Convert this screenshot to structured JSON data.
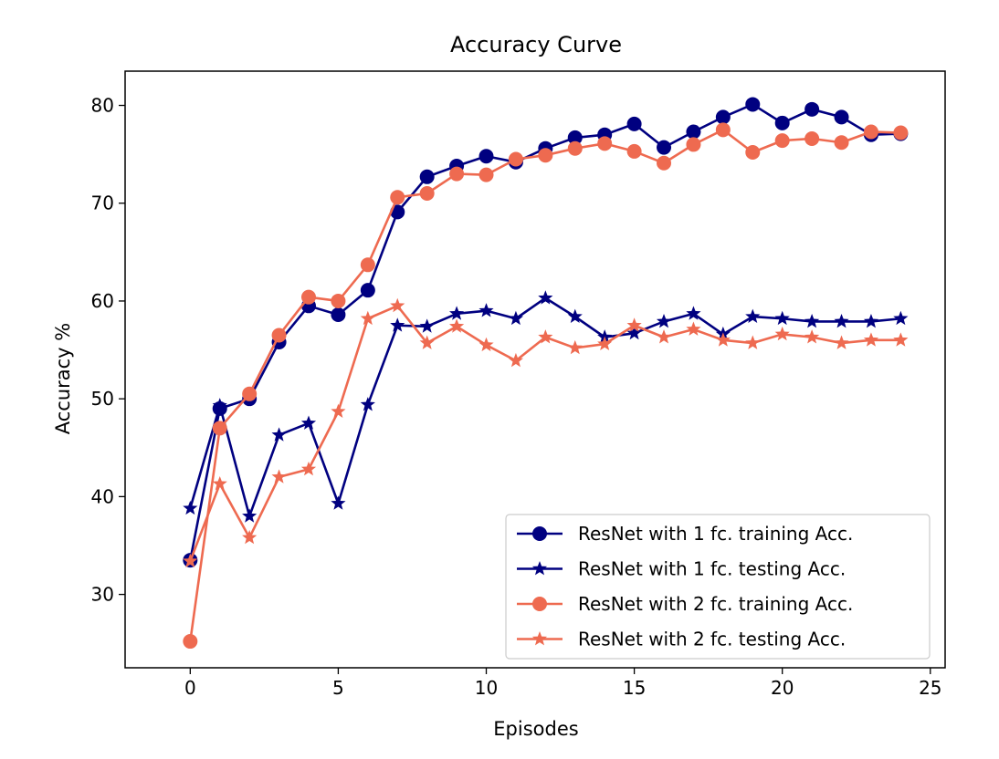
{
  "chart_data": {
    "type": "line",
    "title": "Accuracy Curve",
    "xlabel": "Episodes",
    "ylabel": "Accuracy %",
    "xlim": [
      -2.2,
      25.5
    ],
    "ylim": [
      22.5,
      83.5
    ],
    "xticks": [
      0,
      5,
      10,
      15,
      20,
      25
    ],
    "yticks": [
      30,
      40,
      50,
      60,
      70,
      80
    ],
    "grid": false,
    "legend_position": "lower-right",
    "x": [
      0,
      1,
      2,
      3,
      4,
      5,
      6,
      7,
      8,
      9,
      10,
      11,
      12,
      13,
      14,
      15,
      16,
      17,
      18,
      19,
      20,
      21,
      22,
      23,
      24
    ],
    "series": [
      {
        "name": "ResNet with 1 fc. training Acc.",
        "color": "#000080",
        "marker": "circle",
        "values": [
          33.5,
          49.0,
          50.0,
          55.8,
          59.5,
          58.6,
          61.1,
          69.1,
          72.7,
          73.8,
          74.8,
          74.2,
          75.6,
          76.7,
          77.0,
          78.1,
          75.7,
          77.3,
          78.8,
          80.1,
          78.2,
          79.6,
          78.8,
          77.0,
          77.1
        ]
      },
      {
        "name": "ResNet with 1 fc. testing Acc.",
        "color": "#000080",
        "marker": "star",
        "values": [
          38.8,
          49.3,
          38.0,
          46.3,
          47.5,
          39.3,
          49.4,
          57.5,
          57.4,
          58.7,
          59.0,
          58.2,
          60.3,
          58.4,
          56.3,
          56.7,
          57.9,
          58.7,
          56.6,
          58.4,
          58.2,
          57.9,
          57.9,
          57.9,
          58.2
        ]
      },
      {
        "name": "ResNet with 2 fc. training Acc.",
        "color": "#ee6a50",
        "marker": "circle",
        "values": [
          25.2,
          47.0,
          50.5,
          56.5,
          60.4,
          60.0,
          63.7,
          70.6,
          71.0,
          73.0,
          72.9,
          74.5,
          74.9,
          75.6,
          76.1,
          75.3,
          74.1,
          76.0,
          77.5,
          75.2,
          76.4,
          76.6,
          76.2,
          77.3,
          77.2
        ]
      },
      {
        "name": "ResNet with 2 fc. testing Acc.",
        "color": "#ee6a50",
        "marker": "star",
        "values": [
          33.4,
          41.3,
          35.8,
          42.0,
          42.8,
          48.7,
          58.2,
          59.5,
          55.7,
          57.4,
          55.5,
          53.9,
          56.3,
          55.2,
          55.6,
          57.5,
          56.3,
          57.1,
          56.0,
          55.7,
          56.6,
          56.3,
          55.7,
          56.0,
          56.0
        ]
      }
    ]
  }
}
